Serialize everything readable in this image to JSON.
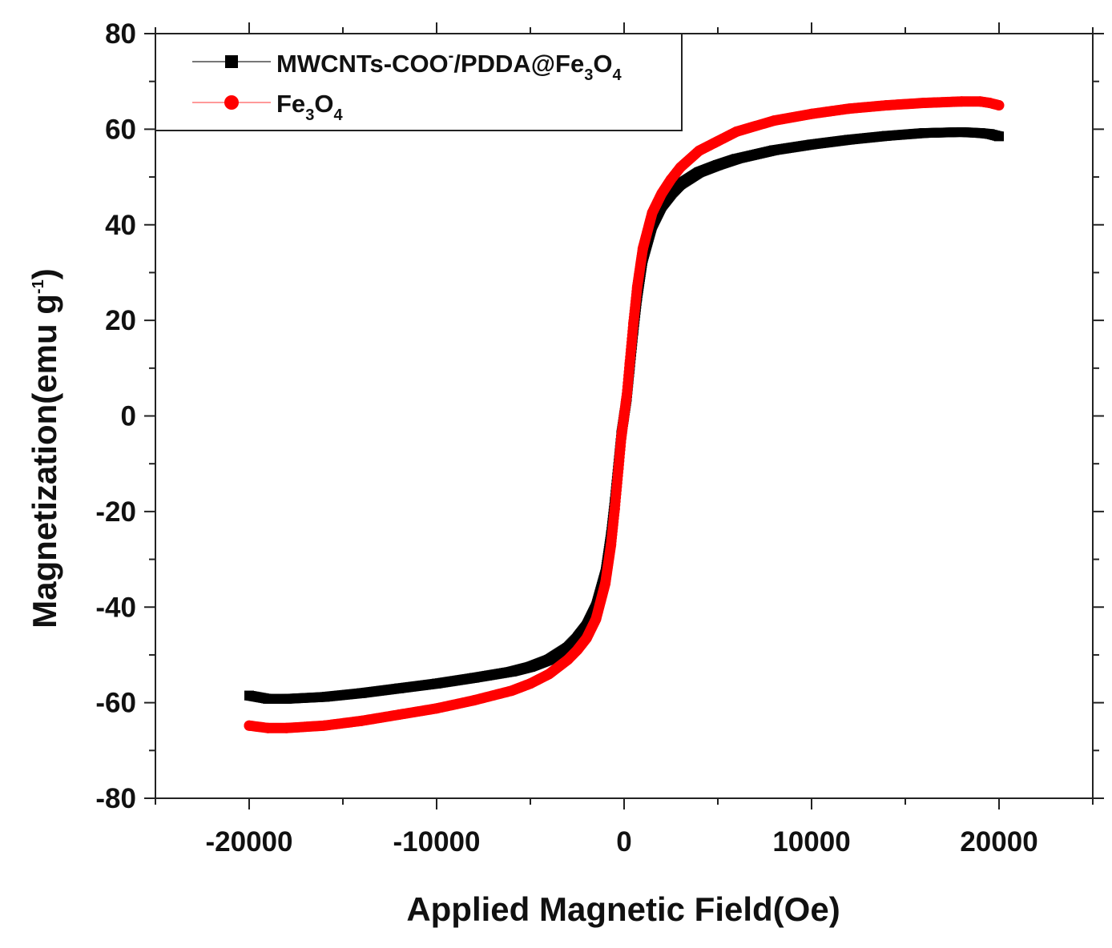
{
  "chart_data": {
    "type": "scatter",
    "xlabel": "Applied Magnetic Field(Oe)",
    "ylabel_parts": {
      "main": "Magnetization(emu g",
      "sup": "-1",
      "close": ")"
    },
    "xlim": [
      -25000,
      25000
    ],
    "ylim": [
      -80,
      80
    ],
    "x_ticks": [
      -20000,
      -10000,
      0,
      10000,
      20000
    ],
    "x_tick_labels": [
      "-20000",
      "-10000",
      "0",
      "10000",
      "20000"
    ],
    "y_ticks": [
      -80,
      -60,
      -40,
      -20,
      0,
      20,
      40,
      60,
      80
    ],
    "y_tick_labels": [
      "-80",
      "-60",
      "-40",
      "-20",
      "0",
      "20",
      "40",
      "60",
      "80"
    ],
    "legend_position": "top-left",
    "series": [
      {
        "name_parts": [
          "MWCNTs-COO",
          "-",
          "/PDDA@Fe",
          "3",
          "O",
          "4"
        ],
        "color": "#000000",
        "marker": "square",
        "x": [
          -20000,
          -19000,
          -18000,
          -16000,
          -14000,
          -12000,
          -10000,
          -8000,
          -6000,
          -5000,
          -4000,
          -3000,
          -2500,
          -2000,
          -1500,
          -1000,
          -700,
          -500,
          -300,
          -150,
          0,
          150,
          300,
          500,
          700,
          1000,
          1500,
          2000,
          2500,
          3000,
          4000,
          5000,
          6000,
          8000,
          10000,
          12000,
          14000,
          16000,
          18000,
          19000,
          19500,
          20000
        ],
        "y": [
          -58.5,
          -59.2,
          -59.2,
          -58.8,
          -58.0,
          -57.0,
          -56.0,
          -54.8,
          -53.5,
          -52.5,
          -51.0,
          -48.5,
          -46.5,
          -44.0,
          -40.0,
          -33.0,
          -25.0,
          -18.0,
          -10.0,
          -4.0,
          0,
          4.0,
          10.0,
          18.0,
          25.0,
          33.0,
          40.0,
          44.0,
          46.5,
          48.5,
          51.0,
          52.5,
          53.8,
          55.6,
          56.8,
          57.8,
          58.6,
          59.2,
          59.4,
          59.2,
          59.0,
          58.5
        ]
      },
      {
        "name_parts": [
          "Fe",
          "3",
          "O",
          "4"
        ],
        "color": "#ff0000",
        "marker": "circle",
        "x": [
          -20000,
          -19000,
          -18000,
          -16000,
          -14000,
          -12000,
          -10000,
          -8000,
          -6000,
          -5000,
          -4000,
          -3000,
          -2500,
          -2000,
          -1500,
          -1000,
          -700,
          -500,
          -300,
          -150,
          0,
          150,
          300,
          500,
          700,
          1000,
          1500,
          2000,
          2500,
          3000,
          4000,
          5000,
          6000,
          8000,
          10000,
          12000,
          14000,
          16000,
          18000,
          19000,
          19500,
          20000
        ],
        "y": [
          -64.8,
          -65.3,
          -65.3,
          -64.8,
          -63.8,
          -62.5,
          -61.2,
          -59.5,
          -57.5,
          -56.0,
          -54.0,
          -51.0,
          -49.0,
          -46.5,
          -42.5,
          -35.0,
          -27.0,
          -19.5,
          -11.0,
          -4.5,
          0,
          4.5,
          11.0,
          19.5,
          27.0,
          35.0,
          42.5,
          46.5,
          49.5,
          52.0,
          55.5,
          57.5,
          59.5,
          61.8,
          63.2,
          64.3,
          65.0,
          65.5,
          65.8,
          65.8,
          65.5,
          65.0
        ]
      }
    ]
  }
}
